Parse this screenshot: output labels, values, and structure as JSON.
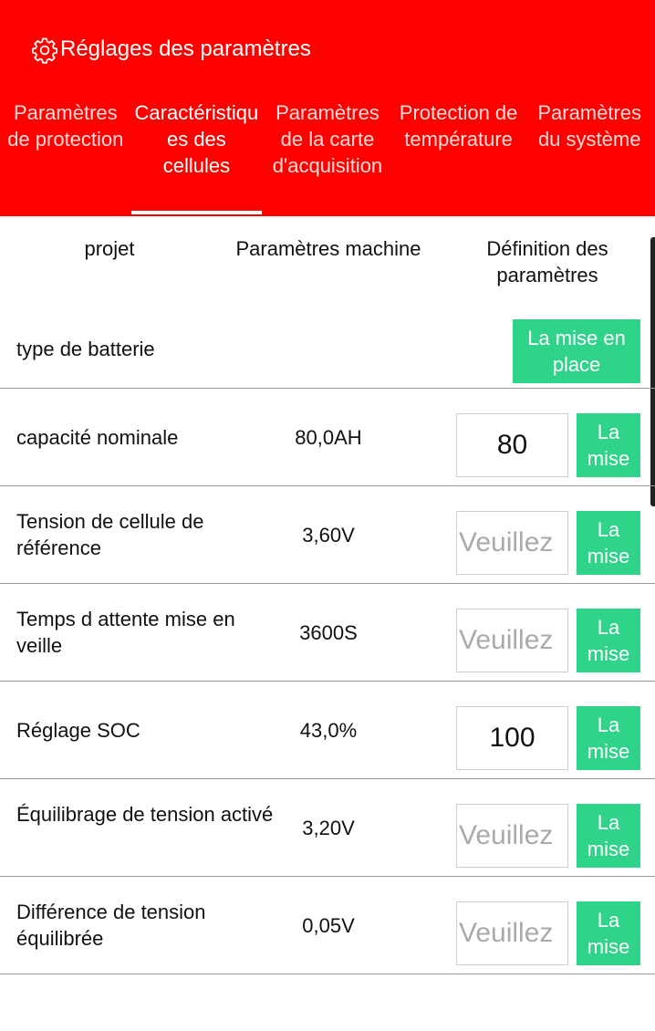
{
  "header": {
    "title": "Réglages des paramètres"
  },
  "tabs": [
    "Paramètres de protection",
    "Caractéristiques des cellules",
    "Paramètres de la carte d'acquisition",
    "Protection de température",
    "Paramètres du système"
  ],
  "active_tab": 1,
  "table": {
    "columns": [
      "projet",
      "Paramètres machine",
      "Définition des paramètres"
    ],
    "battery_type": {
      "label": "type de batterie",
      "button": "La mise en place"
    },
    "rows": [
      {
        "label": "capacité nominale",
        "value": "80,0AH",
        "input": "80",
        "button": "La mise"
      },
      {
        "label": "Tension de cellule de référence",
        "value": "3,60V",
        "placeholder": "Veuillez",
        "button": "La mise"
      },
      {
        "label": "Temps d attente mise en veille",
        "value": "3600S",
        "placeholder": "Veuillez",
        "button": "La mise"
      },
      {
        "label": "Réglage SOC",
        "value": "43,0%",
        "input": "100",
        "button": "La mise"
      },
      {
        "label": "Équilibrage de tension activé",
        "value": "3,20V",
        "placeholder": "Veuillez",
        "button": "La mise"
      },
      {
        "label": "Différence de tension équilibrée",
        "value": "0,05V",
        "placeholder": "Veuillez",
        "button": "La mise"
      }
    ]
  }
}
